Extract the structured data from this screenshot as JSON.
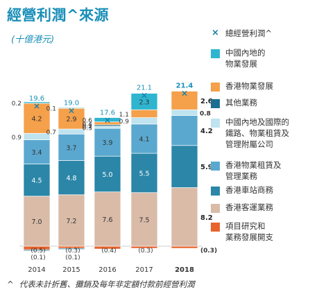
{
  "page": {
    "title": "經營利潤^來源",
    "subtitle": "(十億港元)",
    "footnote_mark": "^",
    "footnote": "代表未計折舊、攤銷及每年非定額付款前經營利潤"
  },
  "chart_data": {
    "type": "bar",
    "stacked": true,
    "categories": [
      "2014",
      "2015",
      "2016",
      "2017",
      "2018"
    ],
    "highlight_category": "2018",
    "total_series": {
      "name": "總經營利潤^",
      "marker": "×",
      "values": [
        19.6,
        19.0,
        17.6,
        21.1,
        21.4
      ],
      "labels": [
        "19.6",
        "19.0",
        "17.6",
        "21.1",
        "21.4"
      ]
    },
    "series": [
      {
        "name": "項目研究和\n業務發展開支",
        "color": "#e8642c",
        "values": [
          -0.5,
          -0.3,
          -0.4,
          -0.3,
          -0.3
        ],
        "labels": [
          "(0.5)",
          "(0.3)",
          "(0.4)",
          "(0.3)",
          "(0.3)"
        ]
      },
      {
        "name": "香港客運業務",
        "color": "#d9bba8",
        "values": [
          7.0,
          7.2,
          7.6,
          7.5,
          8.2
        ],
        "labels": [
          "7.0",
          "7.2",
          "7.6",
          "7.5",
          "8.2"
        ]
      },
      {
        "name": "香港車站商務",
        "color": "#2b86a8",
        "values": [
          4.5,
          4.8,
          5.0,
          5.5,
          5.9
        ],
        "labels": [
          "4.5",
          "4.8",
          "5.0",
          "5.5",
          "5.9"
        ]
      },
      {
        "name": "香港物業租賃及\n管理業務",
        "color": "#5aa8cf",
        "values": [
          3.4,
          3.7,
          3.9,
          4.1,
          4.2
        ],
        "labels": [
          "3.4",
          "3.7",
          "3.9",
          "4.1",
          "4.2"
        ]
      },
      {
        "name": "中國內地及國際的\n鐵路、物業租賃及\n管理附屬公司",
        "color": "#bfe3ef",
        "values": [
          0.9,
          0.7,
          0.3,
          0.9,
          0.8
        ],
        "labels": [
          "0.9",
          "0.7",
          "0.3",
          "0.9",
          "0.8"
        ]
      },
      {
        "name": "其他業務",
        "color": "#1a6f90",
        "values": [
          -0.1,
          -0.1,
          0.2,
          0.0,
          0.0
        ],
        "labels": [
          "(0.1)",
          "(0.1)",
          "0.2",
          "",
          ""
        ]
      },
      {
        "name": "香港物業發展",
        "color": "#f5a04a",
        "values": [
          4.2,
          2.9,
          0.4,
          1.1,
          2.6
        ],
        "labels": [
          "4.2",
          "2.9",
          "0.4",
          "1.1",
          "2.6"
        ]
      },
      {
        "name": "中國內地的\n物業發展",
        "color": "#2fb5cf",
        "values": [
          0.2,
          0.1,
          0.6,
          2.3,
          0.0
        ],
        "labels": [
          "0.2",
          "0.1",
          "0.6",
          "2.3",
          ""
        ]
      }
    ],
    "legend_order": [
      "總經營利潤^",
      "中國內地的\n物業發展",
      "香港物業發展",
      "其他業務",
      "中國內地及國際的\n鐵路、物業租賃及\n管理附屬公司",
      "香港物業租賃及\n管理業務",
      "香港車站商務",
      "香港客運業務",
      "項目研究和\n業務發展開支"
    ],
    "legend_position": "right"
  }
}
